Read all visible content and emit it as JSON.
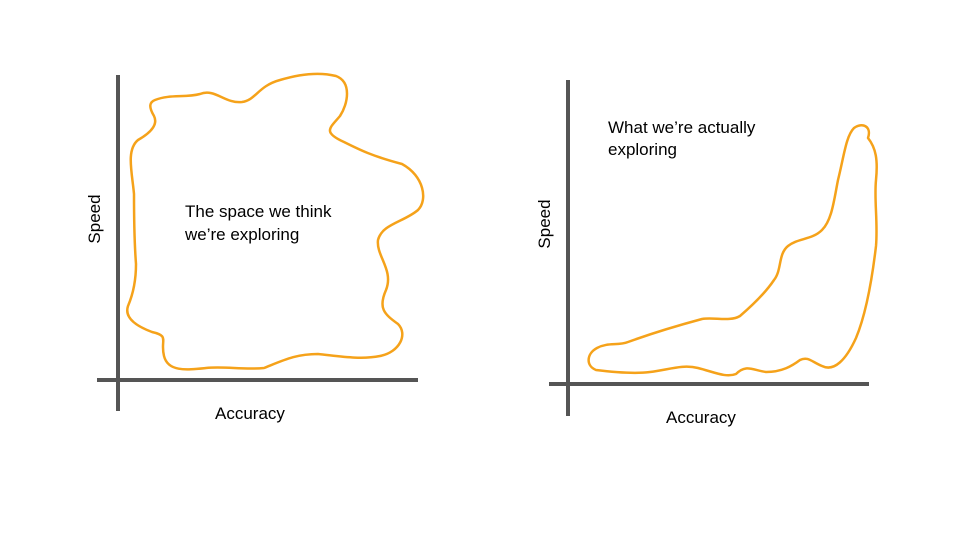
{
  "left_panel": {
    "x_axis_label": "Accuracy",
    "y_axis_label": "Speed",
    "region_label_line1": "The space we think",
    "region_label_line2": "we’re exploring"
  },
  "right_panel": {
    "x_axis_label": "Accuracy",
    "y_axis_label": "Speed",
    "region_label_line1": "What we’re actually",
    "region_label_line2": "exploring"
  },
  "colors": {
    "axis": "#555555",
    "region_outline": "#f5a21a",
    "text": "#000000"
  }
}
